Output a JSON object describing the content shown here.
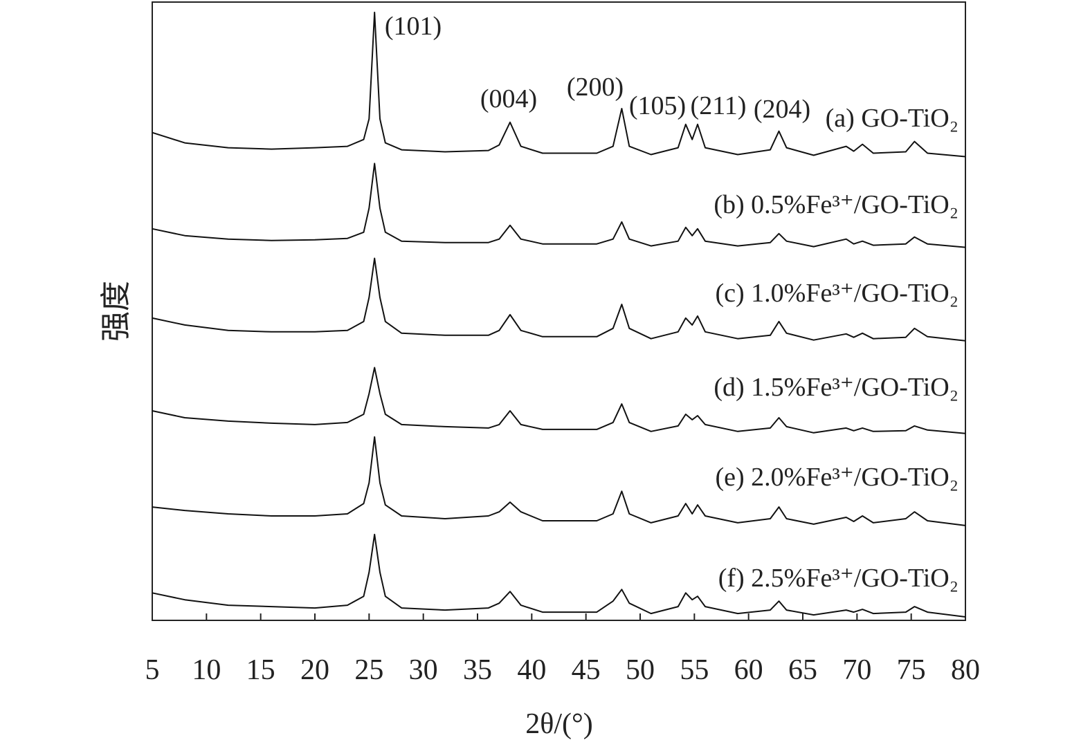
{
  "chart_data": {
    "type": "line",
    "x_label": "2θ/(°)",
    "y_label": "强度",
    "xlim": [
      5,
      80
    ],
    "xticks": [
      5,
      10,
      15,
      20,
      25,
      30,
      35,
      40,
      45,
      50,
      55,
      60,
      65,
      70,
      75,
      80
    ],
    "ylim": [
      0,
      900
    ],
    "annotations": [
      "(101)",
      "(004)",
      "(200)",
      "(105)",
      "(211)",
      "(204)"
    ],
    "x": [
      5,
      8,
      12,
      16,
      20,
      23,
      24.5,
      25,
      25.5,
      26,
      26.5,
      28,
      32,
      36,
      37,
      38,
      39,
      41,
      46,
      47.5,
      48.3,
      49,
      51,
      53.5,
      54.2,
      54.8,
      55.3,
      56,
      59,
      62,
      62.8,
      63.5,
      66,
      69,
      69.7,
      70.5,
      71.5,
      74.5,
      75.3,
      76.5,
      80
    ],
    "series": [
      {
        "name": "(a) GO-TiO₂",
        "color": "#111111",
        "values": [
          710,
          695,
          688,
          686,
          688,
          690,
          700,
          730,
          885,
          730,
          695,
          685,
          682,
          684,
          692,
          725,
          690,
          680,
          680,
          690,
          745,
          690,
          678,
          688,
          722,
          700,
          722,
          688,
          678,
          685,
          712,
          688,
          677,
          690,
          683,
          693,
          680,
          682,
          697,
          680,
          675
        ]
      },
      {
        "name": "(b) 0.5%Fe³⁺/GO-TiO₂",
        "color": "#111111",
        "values": [
          570,
          560,
          555,
          553,
          554,
          556,
          565,
          600,
          665,
          600,
          565,
          552,
          550,
          550,
          555,
          575,
          555,
          548,
          548,
          555,
          580,
          555,
          545,
          552,
          572,
          560,
          570,
          552,
          545,
          550,
          563,
          552,
          544,
          555,
          548,
          552,
          546,
          548,
          558,
          548,
          543
        ]
      },
      {
        "name": "(c) 1.0%Fe³⁺/GO-TiO₂",
        "color": "#111111",
        "values": [
          440,
          430,
          422,
          420,
          420,
          422,
          435,
          470,
          527,
          470,
          435,
          418,
          415,
          415,
          422,
          445,
          422,
          413,
          413,
          425,
          460,
          425,
          410,
          420,
          440,
          430,
          443,
          420,
          410,
          415,
          435,
          418,
          408,
          417,
          412,
          418,
          410,
          412,
          425,
          413,
          407
        ]
      },
      {
        "name": "(d) 1.5%Fe³⁺/GO-TiO₂",
        "color": "#111111",
        "values": [
          305,
          295,
          290,
          287,
          285,
          288,
          300,
          330,
          368,
          330,
          300,
          285,
          282,
          280,
          285,
          305,
          285,
          278,
          278,
          288,
          315,
          288,
          275,
          283,
          300,
          292,
          298,
          285,
          275,
          280,
          295,
          282,
          273,
          280,
          276,
          280,
          275,
          276,
          283,
          277,
          272
        ]
      },
      {
        "name": "(e) 2.0%Fe³⁺/GO-TiO₂",
        "color": "#111111",
        "values": [
          165,
          160,
          155,
          152,
          152,
          155,
          170,
          200,
          267,
          200,
          168,
          152,
          148,
          152,
          158,
          172,
          158,
          145,
          145,
          155,
          188,
          155,
          142,
          152,
          170,
          155,
          168,
          152,
          142,
          148,
          165,
          148,
          140,
          150,
          144,
          152,
          142,
          148,
          158,
          145,
          138
        ]
      },
      {
        "name": "(f) 2.5%Fe³⁺/GO-TiO₂",
        "color": "#111111",
        "values": [
          40,
          30,
          22,
          20,
          18,
          22,
          35,
          70,
          125,
          70,
          35,
          18,
          15,
          18,
          25,
          42,
          22,
          12,
          12,
          28,
          45,
          25,
          10,
          20,
          40,
          30,
          35,
          20,
          10,
          15,
          28,
          15,
          8,
          15,
          12,
          16,
          10,
          12,
          20,
          12,
          5
        ]
      }
    ]
  }
}
